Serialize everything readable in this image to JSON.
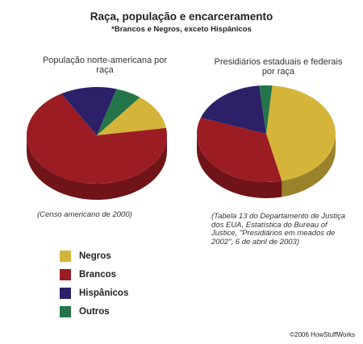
{
  "title": "Raça, população e encarceramento",
  "subtitle": "*Brancos e Negros, exceto Hispânicos",
  "colors": {
    "Negros": "#d4b53a",
    "Brancos": "#9b1c22",
    "Hispânicos": "#2c2069",
    "Outros": "#25754a"
  },
  "chart_data": [
    {
      "type": "pie",
      "title": "População norte-americana por raça",
      "source": "(Censo americano de 2000)",
      "categories": [
        "Negros",
        "Brancos",
        "Hispânicos",
        "Outros"
      ],
      "values": [
        12,
        69,
        13,
        6
      ]
    },
    {
      "type": "pie",
      "title": "Presidiários estaduais e federais por raça",
      "source": "(Tabela 13 do Departamento de Justiça dos EUA, Estatística do Bureau of Justice, \"Presidiários em meados de 2002\", 6 de abril de 2003)",
      "categories": [
        "Negros",
        "Brancos",
        "Hispânicos",
        "Outros"
      ],
      "values": [
        45,
        34,
        18,
        3
      ]
    }
  ],
  "legend": [
    "Negros",
    "Brancos",
    "Hispânicos",
    "Outros"
  ],
  "copyright": "©2006 HowStuffWorks"
}
